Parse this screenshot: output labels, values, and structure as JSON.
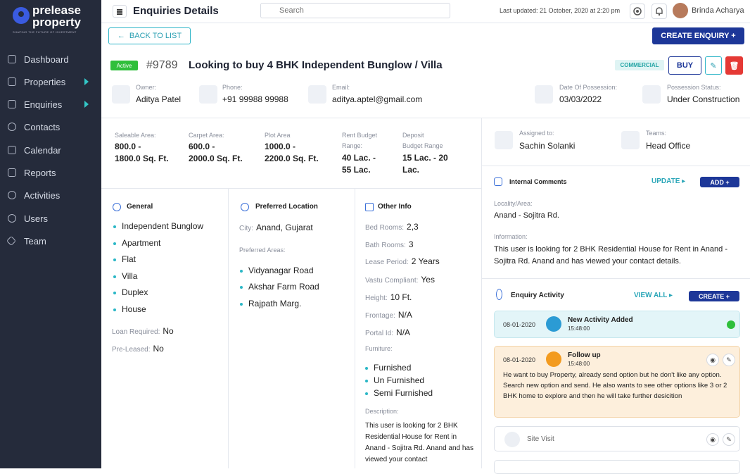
{
  "brand": {
    "line1": "prelease",
    "line2": "property",
    "tagline": "SHAPING THE FUTURE OF INVESTMENT"
  },
  "sidebar": {
    "items": [
      {
        "label": "Dashboard",
        "icon": "dashboard-icon"
      },
      {
        "label": "Properties",
        "icon": "building-icon",
        "caret": true
      },
      {
        "label": "Enquiries",
        "icon": "headset-icon",
        "caret": true
      },
      {
        "label": "Contacts",
        "icon": "contact-icon"
      },
      {
        "label": "Calendar",
        "icon": "calendar-icon"
      },
      {
        "label": "Reports",
        "icon": "report-icon"
      },
      {
        "label": "Activities",
        "icon": "activity-icon"
      },
      {
        "label": "Users",
        "icon": "user-icon"
      },
      {
        "label": "Team",
        "icon": "team-icon"
      }
    ]
  },
  "topbar": {
    "title": "Enquiries Details",
    "search_placeholder": "Search",
    "last_updated": "Last updated: 21 October, 2020 at 2:20 pm",
    "user_name": "Brinda Acharya"
  },
  "actions": {
    "back": "BACK TO LIST",
    "create": "CREATE ENQUIRY +",
    "buy": "BUY"
  },
  "enquiry": {
    "status": "Active",
    "id": "#9789",
    "title": "Looking to buy 4 BHK Independent Bunglow / Villa",
    "tag": "COMMERCIAL"
  },
  "contact": {
    "owner_label": "Owner:",
    "owner": "Aditya Patel",
    "phone_label": "Phone:",
    "phone": "+91 99988 99988",
    "email_label": "Email:",
    "email": "aditya.aptel@gmail.com",
    "possession_date_label": "Date Of Possession:",
    "possession_date": "03/03/2022",
    "possession_status_label": "Possession Status:",
    "possession_status": "Under Construction"
  },
  "metrics": [
    {
      "label": "Saleable Area:",
      "value": "800.0 -\n1800.0 Sq. Ft."
    },
    {
      "label": "Carpet Area:",
      "value": "600.0 -\n2000.0 Sq. Ft."
    },
    {
      "label": "Plot Area",
      "value": "1000.0 -\n2200.0 Sq. Ft."
    },
    {
      "label": "Rent Budget\nRange:",
      "value": "40 Lac. -\n55 Lac."
    },
    {
      "label": "Deposit\nBudget Range",
      "value": "15 Lac. - 20\nLac."
    }
  ],
  "general": {
    "title": "General",
    "items": [
      "Independent Bunglow",
      "Apartment",
      "Flat",
      "Villa",
      "Duplex",
      "House"
    ],
    "loan_label": "Loan Required:",
    "loan": "No",
    "preleased_label": "Pre-Leased:",
    "preleased": "No"
  },
  "preferred": {
    "title": "Preferred Location",
    "city_label": "City:",
    "city": "Anand, Gujarat",
    "areas_label": "Preferred Areas:",
    "areas": [
      "Vidyanagar Road",
      "Akshar Farm Road",
      "Rajpath Marg."
    ]
  },
  "other": {
    "title": "Other Info",
    "rows": [
      {
        "k": "Bed Rooms:",
        "v": "2,3"
      },
      {
        "k": "Bath Rooms:",
        "v": "3"
      },
      {
        "k": "Lease Period:",
        "v": "2 Years"
      },
      {
        "k": "Vastu Compliant:",
        "v": "Yes"
      },
      {
        "k": "Height:",
        "v": "10 Ft."
      },
      {
        "k": "Frontage:",
        "v": "N/A"
      },
      {
        "k": "Portal Id:",
        "v": "N/A"
      }
    ],
    "furniture_label": "Furniture:",
    "furniture": [
      "Furnished",
      "Un Furnished",
      "Semi Furnished"
    ],
    "description_label": "Description:",
    "description": "This user is looking for 2 BHK Residential House for Rent in Anand - Sojitra Rd. Anand and has viewed your contact"
  },
  "assignment": {
    "assigned_label": "Assigned to:",
    "assigned": "Sachin Solanki",
    "teams_label": "Teams:",
    "teams": "Head Office"
  },
  "comments": {
    "title": "Internal Comments",
    "update": "UPDATE",
    "add": "ADD +",
    "locality_label": "Locality/Area:",
    "locality": "Anand - Sojitra Rd.",
    "information_label": "Information:",
    "information": "This user is looking for 2 BHK Residential House for Rent in Anand - Sojitra Rd. Anand and has viewed your contact details."
  },
  "activity": {
    "title": "Enquiry Activity",
    "view_all": "VIEW ALL",
    "create": "CREATE +",
    "items": [
      {
        "date": "08-01-2020",
        "title": "New Activity Added",
        "time": "15:48:00"
      },
      {
        "date": "08-01-2020",
        "title": "Follow up",
        "time": "15:48:00",
        "body": "He want to buy Property, already send option but he don't like any option. Search new option and send. He also wants to see other options like 3 or 2 BHK home to explore and then he will take further desicition"
      },
      {
        "title": "Site Visit"
      }
    ]
  },
  "colors": {
    "sidebar": "#252b3b",
    "accent": "#2fb5c8",
    "primary": "#1d3798",
    "success": "#2fbf3b",
    "danger": "#e53935"
  }
}
